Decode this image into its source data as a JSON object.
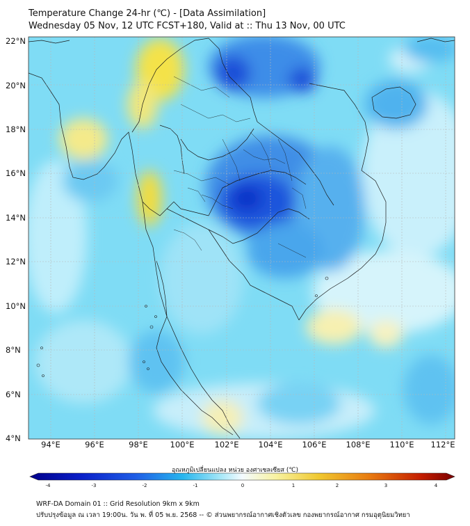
{
  "title": {
    "line1": "Temperature Change 24-hr (℃) - [Data Assimilation]",
    "line2": "Wednesday 05 Nov, 12 UTC FCST+180, Valid at :: Thu 13 Nov, 00 UTC"
  },
  "map": {
    "lat_labels": [
      "22°N",
      "20°N",
      "18°N",
      "16°N",
      "14°N",
      "12°N",
      "10°N",
      "8°N",
      "6°N",
      "4°N"
    ],
    "lon_labels": [
      "94°E",
      "96°E",
      "98°E",
      "100°E",
      "102°E",
      "104°E",
      "106°E",
      "108°E",
      "110°E",
      "112°E"
    ]
  },
  "colorbar": {
    "label": "อุณหภูมิเปลี่ยนแปลง หน่วย องศาเซลเซียส (℃)",
    "ticks": [
      "-4",
      "-3",
      "-2",
      "-1",
      "0",
      "1",
      "2",
      "3",
      "4"
    ],
    "colors": {
      "cold_max": "#00008a",
      "cold": "#1f52e0",
      "cool": "#27c2ef",
      "neutral": "#f4fbff",
      "warm": "#f0e24a",
      "hot": "#e05a00",
      "hot_max": "#7a0000"
    }
  },
  "footer": {
    "line1": "WRF-DA Domain 01 :: Grid Resolution 9km x 9km",
    "line2": "ปรับปรุงข้อมูล ณ เวลา 19:00น. วัน พ. ที่ 05 พ.ย. 2568 -- © ส่วนพยากรณ์อากาศเชิงตัวเลข กองพยากรณ์อากาศ กรมอุตุนิยมวิทยา"
  }
}
